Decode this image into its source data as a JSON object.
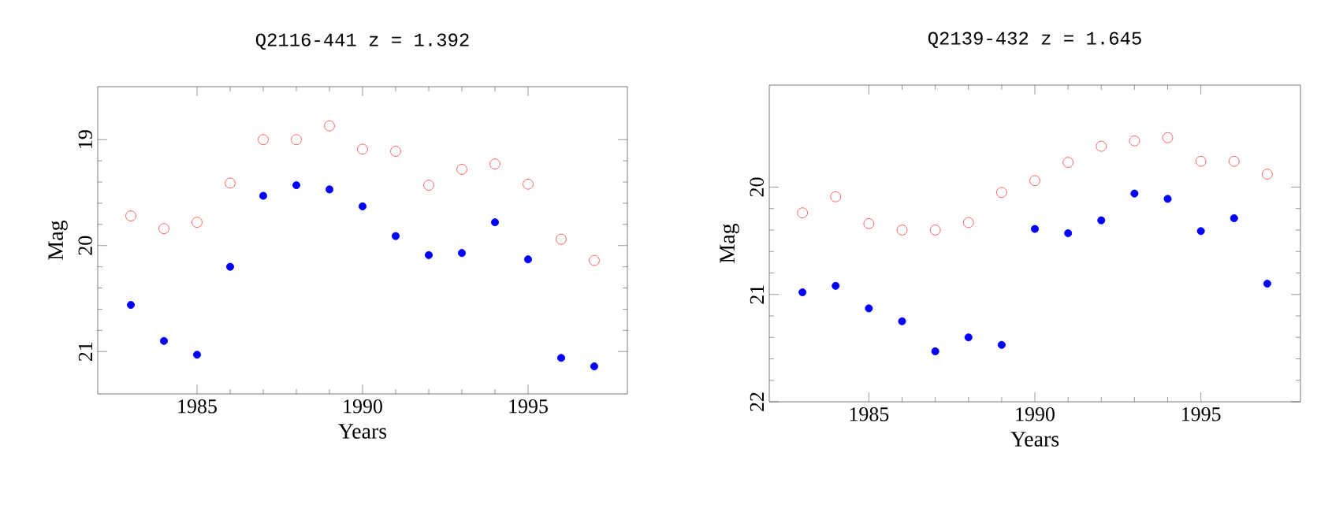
{
  "chart_data": [
    {
      "type": "scatter",
      "title": "Q2116-441  z = 1.392",
      "xlabel": "Years",
      "ylabel": "Mag",
      "x": [
        1983,
        1984,
        1985,
        1986,
        1987,
        1988,
        1989,
        1990,
        1991,
        1992,
        1993,
        1994,
        1995,
        1996,
        1997
      ],
      "marker": "circle",
      "xlim": [
        1982,
        1998
      ],
      "ylim": [
        21.4,
        18.5
      ],
      "xticks": [
        1985,
        1990,
        1995
      ],
      "yticks": [
        19,
        20,
        21
      ],
      "series": [
        {
          "color": "#ff3333",
          "values": [
            19.72,
            19.84,
            19.78,
            19.41,
            19.0,
            19.0,
            18.87,
            19.09,
            19.11,
            19.43,
            19.28,
            19.23,
            19.42,
            19.94,
            20.14
          ]
        },
        {
          "color": "#0000ff",
          "values": [
            20.56,
            20.9,
            21.03,
            20.2,
            19.53,
            19.43,
            19.47,
            19.63,
            19.91,
            20.09,
            20.07,
            19.78,
            20.13,
            21.06,
            21.14
          ]
        }
      ]
    },
    {
      "type": "scatter",
      "title": "Q2139-432  z = 1.645",
      "xlabel": "Years",
      "ylabel": "Mag",
      "x": [
        1983,
        1984,
        1985,
        1986,
        1987,
        1988,
        1989,
        1990,
        1991,
        1992,
        1993,
        1994,
        1995,
        1996,
        1997
      ],
      "marker": "circle",
      "xlim": [
        1982,
        1998
      ],
      "ylim": [
        22,
        19.05
      ],
      "xticks": [
        1985,
        1990,
        1995
      ],
      "yticks": [
        20,
        21,
        22
      ],
      "series": [
        {
          "color": "#ff3333",
          "values": [
            20.24,
            20.09,
            20.34,
            20.4,
            20.4,
            20.33,
            20.05,
            19.94,
            19.77,
            19.62,
            19.57,
            19.54,
            19.76,
            19.76,
            19.88
          ]
        },
        {
          "color": "#0000ff",
          "values": [
            20.98,
            20.92,
            21.13,
            21.25,
            21.53,
            21.4,
            21.47,
            20.39,
            20.43,
            20.31,
            20.06,
            20.11,
            20.41,
            20.29,
            20.9
          ]
        }
      ]
    }
  ]
}
